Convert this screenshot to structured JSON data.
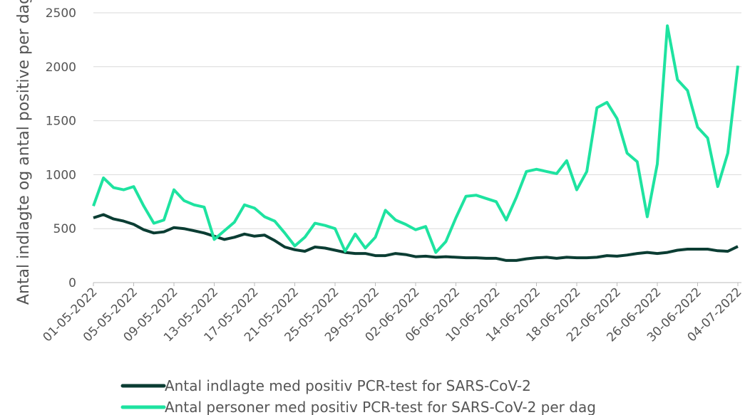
{
  "chart_data": {
    "type": "line",
    "ylabel": "Antal indlagte og antal positive per dag",
    "categories": [
      "01-05-2022",
      null,
      null,
      null,
      "05-05-2022",
      null,
      null,
      null,
      "09-05-2022",
      null,
      null,
      null,
      "13-05-2022",
      null,
      null,
      null,
      "17-05-2022",
      null,
      null,
      null,
      "21-05-2022",
      null,
      null,
      null,
      "25-05-2022",
      null,
      null,
      null,
      "29-05-2022",
      null,
      null,
      null,
      "02-06-2022",
      null,
      null,
      null,
      "06-06-2022",
      null,
      null,
      null,
      "10-06-2022",
      null,
      null,
      null,
      "14-06-2022",
      null,
      null,
      null,
      "18-06-2022",
      null,
      null,
      null,
      "22-06-2022",
      null,
      null,
      null,
      "26-06-2022",
      null,
      null,
      null,
      "30-06-2022",
      null,
      null,
      null,
      "04-07-2022"
    ],
    "series": [
      {
        "name": "Antal indlagte med positiv PCR-test for SARS-CoV-2",
        "color": "#0b3d33",
        "values": [
          600,
          630,
          590,
          570,
          540,
          490,
          460,
          470,
          510,
          500,
          480,
          460,
          430,
          400,
          420,
          450,
          430,
          440,
          390,
          330,
          305,
          290,
          330,
          320,
          300,
          280,
          270,
          270,
          250,
          250,
          270,
          260,
          240,
          245,
          235,
          240,
          235,
          230,
          230,
          225,
          225,
          205,
          205,
          220,
          230,
          235,
          225,
          235,
          230,
          230,
          235,
          250,
          245,
          255,
          270,
          280,
          270,
          280,
          300,
          310,
          310,
          310,
          295,
          290,
          335
        ]
      },
      {
        "name": "Antal personer med positiv PCR-test for SARS-CoV-2 per dag",
        "color": "#1ee3a0",
        "values": [
          710,
          970,
          880,
          860,
          890,
          710,
          550,
          580,
          860,
          760,
          720,
          700,
          400,
          480,
          560,
          720,
          690,
          610,
          570,
          460,
          340,
          420,
          550,
          530,
          500,
          290,
          450,
          320,
          420,
          670,
          580,
          540,
          490,
          520,
          280,
          380,
          600,
          800,
          810,
          780,
          750,
          580,
          790,
          1030,
          1050,
          1030,
          1010,
          1130,
          860,
          1030,
          1620,
          1670,
          1520,
          1200,
          1120,
          610,
          1100,
          2380,
          1880,
          1780,
          1440,
          1340,
          890,
          1200,
          2010
        ]
      }
    ],
    "ylim": [
      0,
      2500
    ],
    "yticks": [
      0,
      500,
      1000,
      1500,
      2000,
      2500
    ],
    "grid": true,
    "legend": "bottom"
  }
}
